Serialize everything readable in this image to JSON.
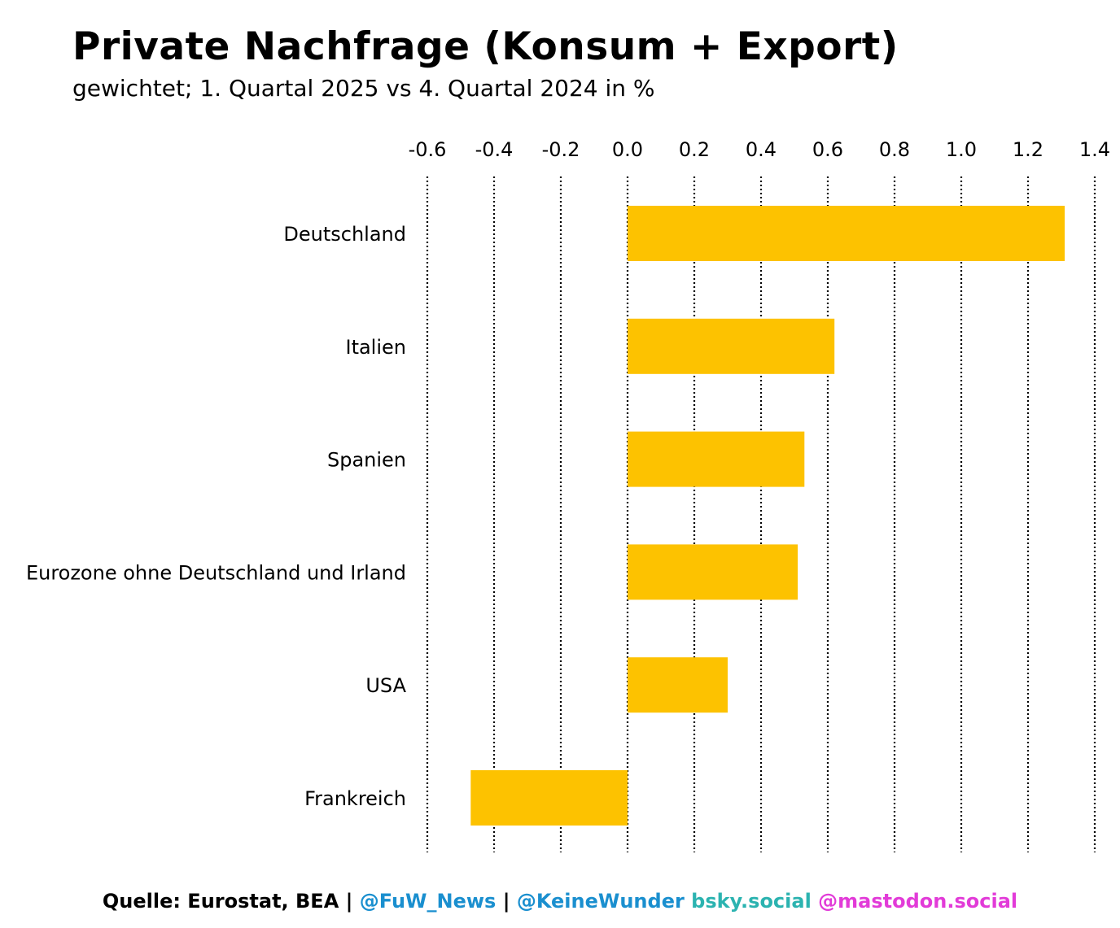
{
  "header": {
    "title": "Private Nachfrage (Konsum + Export)",
    "subtitle": "gewichtet; 1. Quartal 2025 vs 4. Quartal 2024 in %"
  },
  "footer": {
    "source": "Quelle: Eurostat, BEA",
    "sep1": " | ",
    "handle1": "@FuW_News",
    "sep2": " | ",
    "handle2": "@KeineWunder",
    "bsky": " bsky.social",
    "mastodon": " @mastodon.social",
    "colors": {
      "source": "#000000",
      "handle": "#1a8fcf",
      "bsky": "#2bb3b0",
      "mastodon": "#e23bd8"
    }
  },
  "chart_data": {
    "type": "bar",
    "orientation": "horizontal",
    "categories": [
      "Deutschland",
      "Italien",
      "Spanien",
      "Eurozone ohne Deutschland und Irland",
      "USA",
      "Frankreich"
    ],
    "values": [
      1.31,
      0.62,
      0.53,
      0.51,
      0.3,
      -0.47
    ],
    "xlim": [
      -0.6,
      1.4
    ],
    "xticks": [
      "-0.6",
      "-0.4",
      "-0.2",
      "0.0",
      "0.2",
      "0.4",
      "0.6",
      "0.8",
      "1.0",
      "1.2",
      "1.4"
    ],
    "xaxis_position": "top",
    "grid": "vertical dotted",
    "bar_color": "#fdc200"
  }
}
